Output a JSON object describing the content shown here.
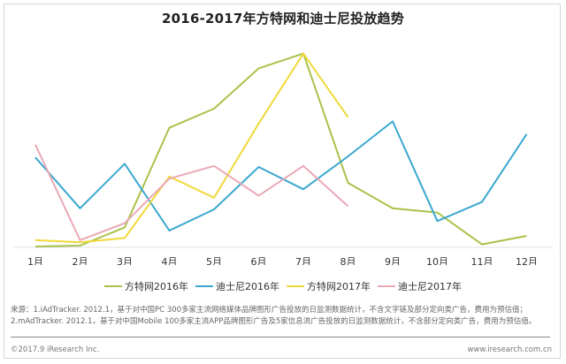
{
  "title": "2016-2017年方特网和迪士尼投放趋势",
  "chart_data": {
    "type": "line",
    "title": "2016-2017年方特网和迪士尼投放趋势",
    "xlabel": "",
    "ylabel": "",
    "categories": [
      "1月",
      "2月",
      "3月",
      "4月",
      "5月",
      "6月",
      "7月",
      "8月",
      "9月",
      "10月",
      "11月",
      "12月"
    ],
    "ylim": [
      0,
      100
    ],
    "grid": false,
    "legend_position": "bottom",
    "series": [
      {
        "name": "方特网2016年",
        "color": "#a9c24a",
        "values": [
          0,
          0.4,
          9,
          56,
          65,
          84,
          91,
          30,
          18,
          16,
          1,
          5
        ]
      },
      {
        "name": "迪士尼2016年",
        "color": "#3aa8d0",
        "values": [
          42,
          18,
          39,
          7.5,
          17.5,
          37.5,
          27,
          42.5,
          59,
          12,
          21,
          53
        ]
      },
      {
        "name": "方特网2017年",
        "color": "#f0d93a",
        "values": [
          3,
          2,
          4,
          33,
          23,
          58,
          91,
          61
        ]
      },
      {
        "name": "迪士尼2017年",
        "color": "#eba8b6",
        "values": [
          48,
          3,
          11,
          32,
          38,
          24,
          38,
          19
        ]
      }
    ]
  },
  "legend": [
    {
      "label": "方特网2016年",
      "color": "#a9c24a"
    },
    {
      "label": "迪士尼2016年",
      "color": "#3aa8d0"
    },
    {
      "label": "方特网2017年",
      "color": "#f0d93a"
    },
    {
      "label": "迪士尼2017年",
      "color": "#eba8b6"
    }
  ],
  "notes": {
    "line1": "来源：1.iAdTracker. 2012.1，基于对中国PC 300多家主流网络媒体品牌图形广告投放的日监测数据统计，不含文字链及部分定向类广告，费用为预估值；",
    "line2": "2.mAdTracker. 2012.1，基于对中国Mobile 100多家主流APP品牌图形广告及5家信息流广告投放的日监测数据统计，不含部分定向类广告，费用为预估值。"
  },
  "footer": {
    "copyright": "©2017.9 iResearch Inc.",
    "website": "www.iresearch.com.cn"
  }
}
